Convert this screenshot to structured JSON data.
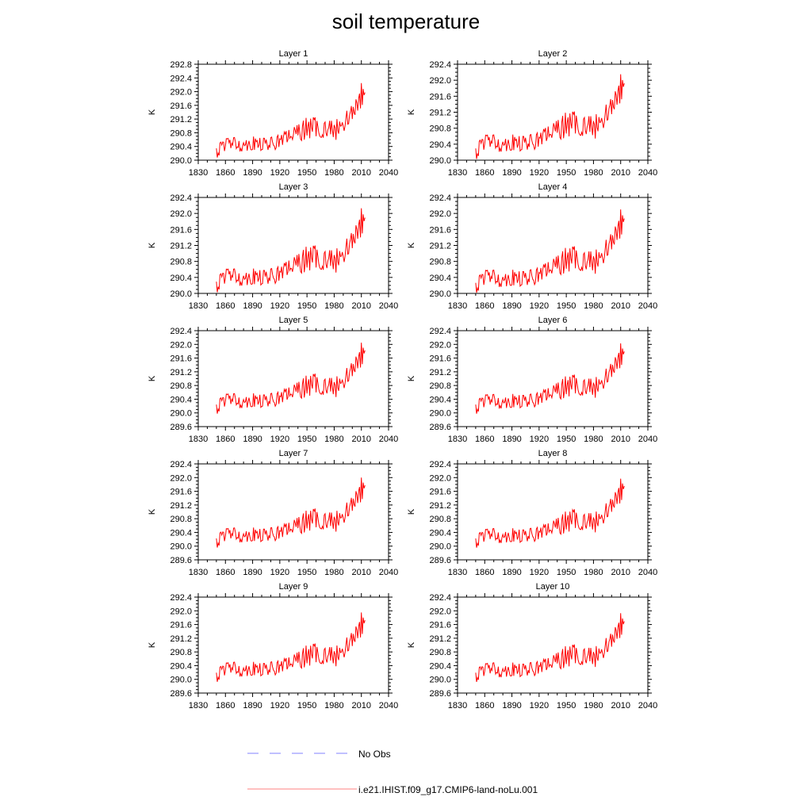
{
  "title": "soil temperature",
  "colors": {
    "model": "#ff0000",
    "obs": "#8080ff",
    "axis": "#000000"
  },
  "legend": [
    {
      "label": "No Obs",
      "style": "dashed",
      "color": "#8080ff"
    },
    {
      "label": "i.e21.IHIST.f09_g17.CMIP6-land-noLu.001",
      "style": "solid",
      "color": "#ff8080"
    }
  ],
  "chart_data": [
    {
      "type": "line",
      "title": "Layer 1",
      "ylabel": "K",
      "xlim": [
        1830,
        2040
      ],
      "ylim": [
        290.0,
        292.8
      ],
      "xticks": [
        "1830",
        "1860",
        "1890",
        "1920",
        "1950",
        "1980",
        "2010",
        "2040"
      ],
      "yticks": [
        "290.0",
        "290.4",
        "290.8",
        "291.2",
        "291.6",
        "292.0",
        "292.4",
        "292.8"
      ],
      "anchors_x": [
        1850,
        1860,
        1870,
        1880,
        1890,
        1900,
        1910,
        1920,
        1930,
        1940,
        1950,
        1960,
        1970,
        1980,
        1990,
        2000,
        2005,
        2010,
        2014
      ],
      "anchors_y": [
        290.2,
        290.5,
        290.48,
        290.45,
        290.5,
        290.45,
        290.48,
        290.55,
        290.72,
        290.82,
        290.95,
        290.95,
        290.95,
        290.85,
        291.05,
        291.45,
        291.55,
        291.8,
        292.0
      ],
      "series": [
        {
          "name": "i.e21.IHIST.f09_g17.CMIP6-land-noLu.001",
          "color": "#ff0000"
        }
      ]
    },
    {
      "type": "line",
      "title": "Layer 2",
      "ylabel": "K",
      "xlim": [
        1830,
        2040
      ],
      "ylim": [
        290.0,
        292.4
      ],
      "xticks": [
        "1830",
        "1860",
        "1890",
        "1920",
        "1950",
        "1980",
        "2010",
        "2040"
      ],
      "yticks": [
        "290.0",
        "290.4",
        "290.8",
        "291.2",
        "291.6",
        "292.0",
        "292.4"
      ],
      "anchors_x": [
        1850,
        1860,
        1870,
        1880,
        1890,
        1900,
        1910,
        1920,
        1930,
        1940,
        1950,
        1960,
        1970,
        1980,
        1990,
        2000,
        2005,
        2010,
        2014
      ],
      "anchors_y": [
        290.15,
        290.5,
        290.45,
        290.4,
        290.45,
        290.4,
        290.45,
        290.5,
        290.68,
        290.78,
        290.9,
        290.92,
        290.9,
        290.8,
        291.0,
        291.4,
        291.5,
        291.7,
        291.95
      ],
      "series": [
        {
          "name": "i.e21.IHIST.f09_g17.CMIP6-land-noLu.001",
          "color": "#ff0000"
        }
      ]
    },
    {
      "type": "line",
      "title": "Layer 3",
      "ylabel": "K",
      "xlim": [
        1830,
        2040
      ],
      "ylim": [
        290.0,
        292.4
      ],
      "xticks": [
        "1830",
        "1860",
        "1890",
        "1920",
        "1950",
        "1980",
        "2010",
        "2040"
      ],
      "yticks": [
        "290.0",
        "290.4",
        "290.8",
        "291.2",
        "291.6",
        "292.0",
        "292.4"
      ],
      "anchors_x": [
        1850,
        1860,
        1870,
        1880,
        1890,
        1900,
        1910,
        1920,
        1930,
        1940,
        1950,
        1960,
        1970,
        1980,
        1990,
        2000,
        2005,
        2010,
        2014
      ],
      "anchors_y": [
        290.15,
        290.48,
        290.43,
        290.38,
        290.43,
        290.38,
        290.43,
        290.48,
        290.66,
        290.76,
        290.88,
        290.9,
        290.88,
        290.78,
        290.98,
        291.38,
        291.48,
        291.68,
        291.92
      ],
      "series": [
        {
          "name": "i.e21.IHIST.f09_g17.CMIP6-land-noLu.001",
          "color": "#ff0000"
        }
      ]
    },
    {
      "type": "line",
      "title": "Layer 4",
      "ylabel": "K",
      "xlim": [
        1830,
        2040
      ],
      "ylim": [
        290.0,
        292.4
      ],
      "xticks": [
        "1830",
        "1860",
        "1890",
        "1920",
        "1950",
        "1980",
        "2010",
        "2040"
      ],
      "yticks": [
        "290.0",
        "290.4",
        "290.8",
        "291.2",
        "291.6",
        "292.0",
        "292.4"
      ],
      "anchors_x": [
        1850,
        1860,
        1870,
        1880,
        1890,
        1900,
        1910,
        1920,
        1930,
        1940,
        1950,
        1960,
        1970,
        1980,
        1990,
        2000,
        2005,
        2010,
        2014
      ],
      "anchors_y": [
        290.12,
        290.45,
        290.4,
        290.35,
        290.4,
        290.35,
        290.4,
        290.45,
        290.62,
        290.72,
        290.85,
        290.88,
        290.85,
        290.75,
        290.95,
        291.35,
        291.45,
        291.65,
        291.9
      ],
      "series": [
        {
          "name": "i.e21.IHIST.f09_g17.CMIP6-land-noLu.001",
          "color": "#ff0000"
        }
      ]
    },
    {
      "type": "line",
      "title": "Layer 5",
      "ylabel": "K",
      "xlim": [
        1830,
        2040
      ],
      "ylim": [
        289.6,
        292.4
      ],
      "xticks": [
        "1830",
        "1860",
        "1890",
        "1920",
        "1950",
        "1980",
        "2010",
        "2040"
      ],
      "yticks": [
        "289.6",
        "290.0",
        "290.4",
        "290.8",
        "291.2",
        "291.6",
        "292.0",
        "292.4"
      ],
      "anchors_x": [
        1850,
        1860,
        1870,
        1880,
        1890,
        1900,
        1910,
        1920,
        1930,
        1940,
        1950,
        1960,
        1970,
        1980,
        1990,
        2000,
        2005,
        2010,
        2014
      ],
      "anchors_y": [
        290.1,
        290.42,
        290.38,
        290.33,
        290.38,
        290.33,
        290.38,
        290.42,
        290.58,
        290.68,
        290.8,
        290.85,
        290.82,
        290.72,
        290.92,
        291.32,
        291.42,
        291.6,
        291.85
      ],
      "series": [
        {
          "name": "i.e21.IHIST.f09_g17.CMIP6-land-noLu.001",
          "color": "#ff0000"
        }
      ]
    },
    {
      "type": "line",
      "title": "Layer 6",
      "ylabel": "K",
      "xlim": [
        1830,
        2040
      ],
      "ylim": [
        289.6,
        292.4
      ],
      "xticks": [
        "1830",
        "1860",
        "1890",
        "1920",
        "1950",
        "1980",
        "2010",
        "2040"
      ],
      "yticks": [
        "289.6",
        "290.0",
        "290.4",
        "290.8",
        "291.2",
        "291.6",
        "292.0",
        "292.4"
      ],
      "anchors_x": [
        1850,
        1860,
        1870,
        1880,
        1890,
        1900,
        1910,
        1920,
        1930,
        1940,
        1950,
        1960,
        1970,
        1980,
        1990,
        2000,
        2005,
        2010,
        2014
      ],
      "anchors_y": [
        290.1,
        290.4,
        290.36,
        290.32,
        290.36,
        290.32,
        290.36,
        290.4,
        290.56,
        290.66,
        290.78,
        290.82,
        290.8,
        290.7,
        290.9,
        291.3,
        291.4,
        291.58,
        291.82
      ],
      "series": [
        {
          "name": "i.e21.IHIST.f09_g17.CMIP6-land-noLu.001",
          "color": "#ff0000"
        }
      ]
    },
    {
      "type": "line",
      "title": "Layer 7",
      "ylabel": "K",
      "xlim": [
        1830,
        2040
      ],
      "ylim": [
        289.6,
        292.4
      ],
      "xticks": [
        "1830",
        "1860",
        "1890",
        "1920",
        "1950",
        "1980",
        "2010",
        "2040"
      ],
      "yticks": [
        "289.6",
        "290.0",
        "290.4",
        "290.8",
        "291.2",
        "291.6",
        "292.0",
        "292.4"
      ],
      "anchors_x": [
        1850,
        1860,
        1870,
        1880,
        1890,
        1900,
        1910,
        1920,
        1930,
        1940,
        1950,
        1960,
        1970,
        1980,
        1990,
        2000,
        2005,
        2010,
        2014
      ],
      "anchors_y": [
        290.08,
        290.38,
        290.35,
        290.3,
        290.35,
        290.3,
        290.35,
        290.38,
        290.52,
        290.62,
        290.75,
        290.8,
        290.78,
        290.68,
        290.88,
        291.28,
        291.38,
        291.55,
        291.8
      ],
      "series": [
        {
          "name": "i.e21.IHIST.f09_g17.CMIP6-land-noLu.001",
          "color": "#ff0000"
        }
      ]
    },
    {
      "type": "line",
      "title": "Layer 8",
      "ylabel": "K",
      "xlim": [
        1830,
        2040
      ],
      "ylim": [
        289.6,
        292.4
      ],
      "xticks": [
        "1830",
        "1860",
        "1890",
        "1920",
        "1950",
        "1980",
        "2010",
        "2040"
      ],
      "yticks": [
        "289.6",
        "290.0",
        "290.4",
        "290.8",
        "291.2",
        "291.6",
        "292.0",
        "292.4"
      ],
      "anchors_x": [
        1850,
        1860,
        1870,
        1880,
        1890,
        1900,
        1910,
        1920,
        1930,
        1940,
        1950,
        1960,
        1970,
        1980,
        1990,
        2000,
        2005,
        2010,
        2014
      ],
      "anchors_y": [
        290.08,
        290.36,
        290.33,
        290.28,
        290.33,
        290.28,
        290.33,
        290.36,
        290.5,
        290.6,
        290.72,
        290.78,
        290.76,
        290.66,
        290.86,
        291.25,
        291.35,
        291.52,
        291.78
      ],
      "series": [
        {
          "name": "i.e21.IHIST.f09_g17.CMIP6-land-noLu.001",
          "color": "#ff0000"
        }
      ]
    },
    {
      "type": "line",
      "title": "Layer 9",
      "ylabel": "K",
      "xlim": [
        1830,
        2040
      ],
      "ylim": [
        289.6,
        292.4
      ],
      "xticks": [
        "1830",
        "1860",
        "1890",
        "1920",
        "1950",
        "1980",
        "2010",
        "2040"
      ],
      "yticks": [
        "289.6",
        "290.0",
        "290.4",
        "290.8",
        "291.2",
        "291.6",
        "292.0",
        "292.4"
      ],
      "anchors_x": [
        1850,
        1860,
        1870,
        1880,
        1890,
        1900,
        1910,
        1920,
        1930,
        1940,
        1950,
        1960,
        1970,
        1980,
        1990,
        2000,
        2005,
        2010,
        2014
      ],
      "anchors_y": [
        290.05,
        290.35,
        290.32,
        290.27,
        290.32,
        290.27,
        290.32,
        290.35,
        290.48,
        290.58,
        290.7,
        290.75,
        290.74,
        290.64,
        290.84,
        291.22,
        291.32,
        291.5,
        291.75
      ],
      "series": [
        {
          "name": "i.e21.IHIST.f09_g17.CMIP6-land-noLu.001",
          "color": "#ff0000"
        }
      ]
    },
    {
      "type": "line",
      "title": "Layer 10",
      "ylabel": "K",
      "xlim": [
        1830,
        2040
      ],
      "ylim": [
        289.6,
        292.4
      ],
      "xticks": [
        "1830",
        "1860",
        "1890",
        "1920",
        "1950",
        "1980",
        "2010",
        "2040"
      ],
      "yticks": [
        "289.6",
        "290.0",
        "290.4",
        "290.8",
        "291.2",
        "291.6",
        "292.0",
        "292.4"
      ],
      "anchors_x": [
        1850,
        1860,
        1870,
        1880,
        1890,
        1900,
        1910,
        1920,
        1930,
        1940,
        1950,
        1960,
        1970,
        1980,
        1990,
        2000,
        2005,
        2010,
        2014
      ],
      "anchors_y": [
        290.05,
        290.33,
        290.3,
        290.25,
        290.3,
        290.25,
        290.3,
        290.33,
        290.46,
        290.56,
        290.68,
        290.72,
        290.72,
        290.62,
        290.82,
        291.2,
        291.3,
        291.48,
        291.72
      ],
      "series": [
        {
          "name": "i.e21.IHIST.f09_g17.CMIP6-land-noLu.001",
          "color": "#ff0000"
        }
      ]
    }
  ]
}
